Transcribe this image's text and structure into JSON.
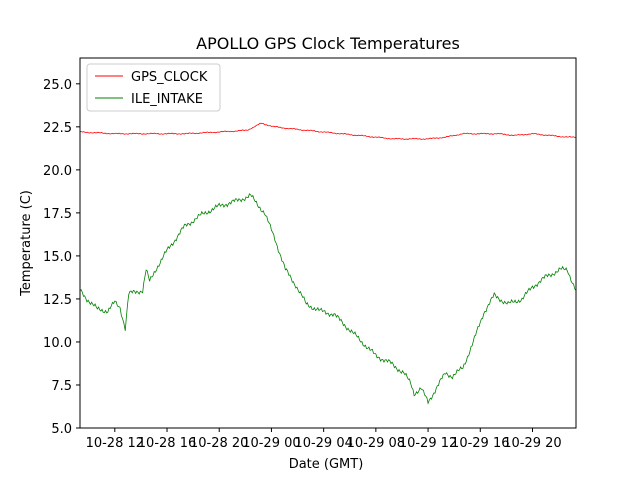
{
  "chart_data": {
    "type": "line",
    "title": "APOLLO GPS Clock Temperatures",
    "xlabel": "Date (GMT)",
    "ylabel": "Temperature (C)",
    "x_unit": "hours (GMT) from 2019-10-28 00:00",
    "xlim": [
      9.0,
      23.25
    ],
    "ylim": [
      5.0,
      26.5
    ],
    "grid": false,
    "legend_position": "top-left",
    "x_ticks": [
      {
        "value": 10,
        "label": "10-28 12"
      },
      {
        "value": 11.5,
        "label": "10-28 16"
      },
      {
        "value": 13,
        "label": "10-28 20"
      },
      {
        "value": 14.5,
        "label": "10-29 00"
      },
      {
        "value": 16,
        "label": "10-29 04"
      },
      {
        "value": 17.5,
        "label": "10-29 08"
      },
      {
        "value": 19,
        "label": "10-29 12"
      },
      {
        "value": 20.5,
        "label": "10-29 16"
      },
      {
        "value": 22,
        "label": "10-29 20"
      }
    ],
    "y_ticks": [
      5.0,
      7.5,
      10.0,
      12.5,
      15.0,
      17.5,
      20.0,
      22.5,
      25.0
    ],
    "y_tick_labels": [
      "5.0",
      "7.5",
      "10.0",
      "12.5",
      "15.0",
      "17.5",
      "20.0",
      "22.5",
      "25.0"
    ],
    "series": [
      {
        "name": "GPS_CLOCK",
        "color": "#ff0000",
        "x": [
          9.0,
          10.0,
          11.0,
          12.0,
          13.0,
          13.8,
          14.2,
          14.6,
          15.0,
          15.5,
          16.0,
          16.5,
          17.0,
          17.5,
          18.0,
          18.5,
          19.0,
          19.5,
          20.0,
          20.5,
          21.0,
          21.5,
          22.0,
          22.5,
          23.0,
          23.25
        ],
        "values": [
          22.2,
          22.1,
          22.1,
          22.1,
          22.2,
          22.3,
          22.7,
          22.5,
          22.4,
          22.3,
          22.2,
          22.1,
          22.0,
          21.9,
          21.8,
          21.8,
          21.8,
          21.9,
          22.1,
          22.1,
          22.1,
          22.0,
          22.1,
          22.0,
          21.9,
          21.9
        ]
      },
      {
        "name": "ILE_INTAKE",
        "color": "#008000",
        "x": [
          9.0,
          9.2,
          9.5,
          9.8,
          10.0,
          10.15,
          10.3,
          10.4,
          10.8,
          10.9,
          11.0,
          11.2,
          11.5,
          12.0,
          12.5,
          13.0,
          13.5,
          13.9,
          14.1,
          14.3,
          14.6,
          14.9,
          15.2,
          15.5,
          15.9,
          16.3,
          16.7,
          17.1,
          17.5,
          17.9,
          18.3,
          18.5,
          18.6,
          18.8,
          19.0,
          19.5,
          19.7,
          20.0,
          20.3,
          20.6,
          20.9,
          21.3,
          21.7,
          22.0,
          22.4,
          22.8,
          23.0,
          23.25
        ],
        "values": [
          13.0,
          12.5,
          11.9,
          11.8,
          12.3,
          12.0,
          10.8,
          12.8,
          13.0,
          14.2,
          13.5,
          14.3,
          15.3,
          16.7,
          17.4,
          17.9,
          18.2,
          18.5,
          18.0,
          17.5,
          16.0,
          14.2,
          13.3,
          12.2,
          11.8,
          11.6,
          10.8,
          10.0,
          9.2,
          8.8,
          8.2,
          7.6,
          7.0,
          7.3,
          6.5,
          8.2,
          8.0,
          8.5,
          10.0,
          11.7,
          12.7,
          12.2,
          12.5,
          13.2,
          13.8,
          14.2,
          14.2,
          13.0
        ]
      }
    ]
  }
}
